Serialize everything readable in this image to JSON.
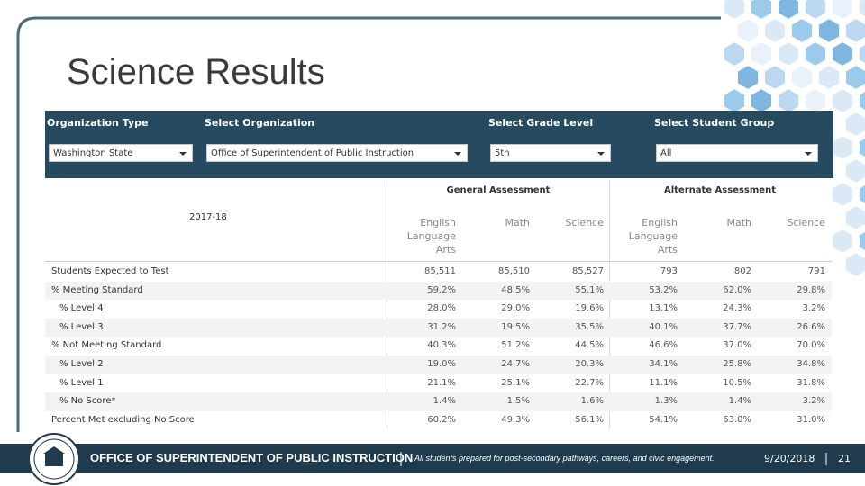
{
  "slide": {
    "title": "Science Results",
    "footer": {
      "organization": "OFFICE OF SUPERINTENDENT OF PUBLIC INSTRUCTION",
      "tagline": "All students prepared for post-secondary pathways, careers, and civic engagement.",
      "date": "9/20/2018",
      "page": "21"
    }
  },
  "filters": [
    {
      "label": "Organization Type",
      "value": "Washington State"
    },
    {
      "label": "Select Organization",
      "value": "Office of Superintendent of Public Instruction"
    },
    {
      "label": "Select Grade Level",
      "value": "5th"
    },
    {
      "label": "Select Student Group",
      "value": "All"
    }
  ],
  "table": {
    "year": "2017-18",
    "groups": [
      "General Assessment",
      "Alternate Assessment"
    ],
    "columns": [
      "English Language Arts",
      "Math",
      "Science",
      "English Language Arts",
      "Math",
      "Science"
    ],
    "rows": [
      {
        "label": "Students Expected to Test",
        "values": [
          "85,511",
          "85,510",
          "85,527",
          "793",
          "802",
          "791"
        ]
      },
      {
        "label": "% Meeting Standard",
        "values": [
          "59.2%",
          "48.5%",
          "55.1%",
          "53.2%",
          "62.0%",
          "29.8%"
        ]
      },
      {
        "label": "% Level 4",
        "values": [
          "28.0%",
          "29.0%",
          "19.6%",
          "13.1%",
          "24.3%",
          "3.2%"
        ]
      },
      {
        "label": "% Level 3",
        "values": [
          "31.2%",
          "19.5%",
          "35.5%",
          "40.1%",
          "37.7%",
          "26.6%"
        ]
      },
      {
        "label": "% Not Meeting Standard",
        "values": [
          "40.3%",
          "51.2%",
          "44.5%",
          "46.6%",
          "37.0%",
          "70.0%"
        ]
      },
      {
        "label": "% Level 2",
        "values": [
          "19.0%",
          "24.7%",
          "20.3%",
          "34.1%",
          "25.8%",
          "34.8%"
        ]
      },
      {
        "label": "% Level 1",
        "values": [
          "21.1%",
          "25.1%",
          "22.7%",
          "11.1%",
          "10.5%",
          "31.8%"
        ]
      },
      {
        "label": "% No Score*",
        "values": [
          "1.4%",
          "1.5%",
          "1.6%",
          "1.3%",
          "1.4%",
          "3.2%"
        ]
      },
      {
        "label": "Percent Met excluding No Score",
        "values": [
          "60.2%",
          "49.3%",
          "56.1%",
          "54.1%",
          "63.0%",
          "31.0%"
        ]
      }
    ]
  }
}
